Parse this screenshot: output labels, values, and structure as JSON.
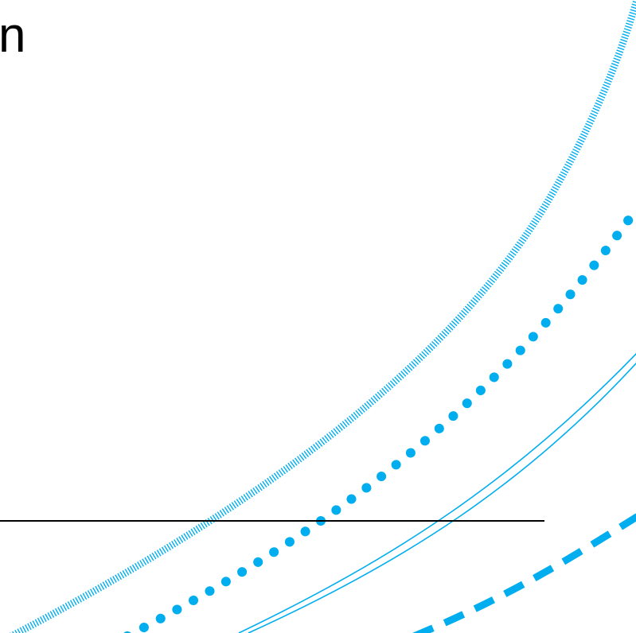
{
  "slide": {
    "title_fragment": "n",
    "accent_color": "#00AEEF",
    "text_color": "#000000",
    "decoration": [
      "hatched-arc",
      "dotted-arc",
      "double-line-arc",
      "dashed-arc"
    ]
  }
}
